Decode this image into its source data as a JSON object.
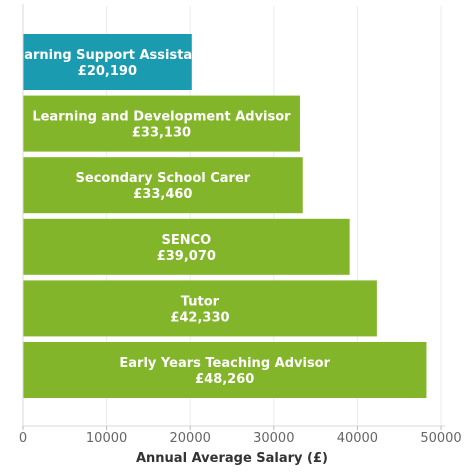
{
  "chart_data": {
    "type": "bar",
    "orientation": "horizontal",
    "categories": [
      "Learning Support Assistant",
      "Learning and Development Advisor",
      "Secondary School Carer",
      "SENCO",
      "Tutor",
      "Early Years Teaching Advisor"
    ],
    "values": [
      20190,
      33130,
      33460,
      39070,
      42330,
      48260
    ],
    "value_labels": [
      "£20,190",
      "£33,130",
      "£33,460",
      "£39,070",
      "£42,330",
      "£48,260"
    ],
    "bar_colors": [
      "#1a9bb0",
      "#82b52a",
      "#82b52a",
      "#82b52a",
      "#82b52a",
      "#82b52a"
    ],
    "xlabel": "Annual Average Salary (£)",
    "ylabel": "",
    "xlim": [
      0,
      50000
    ],
    "xticks": [
      0,
      10000,
      20000,
      30000,
      40000,
      50000
    ],
    "xtick_labels": [
      "0",
      "10000",
      "20000",
      "30000",
      "40000",
      "50000"
    ],
    "grid": true
  }
}
